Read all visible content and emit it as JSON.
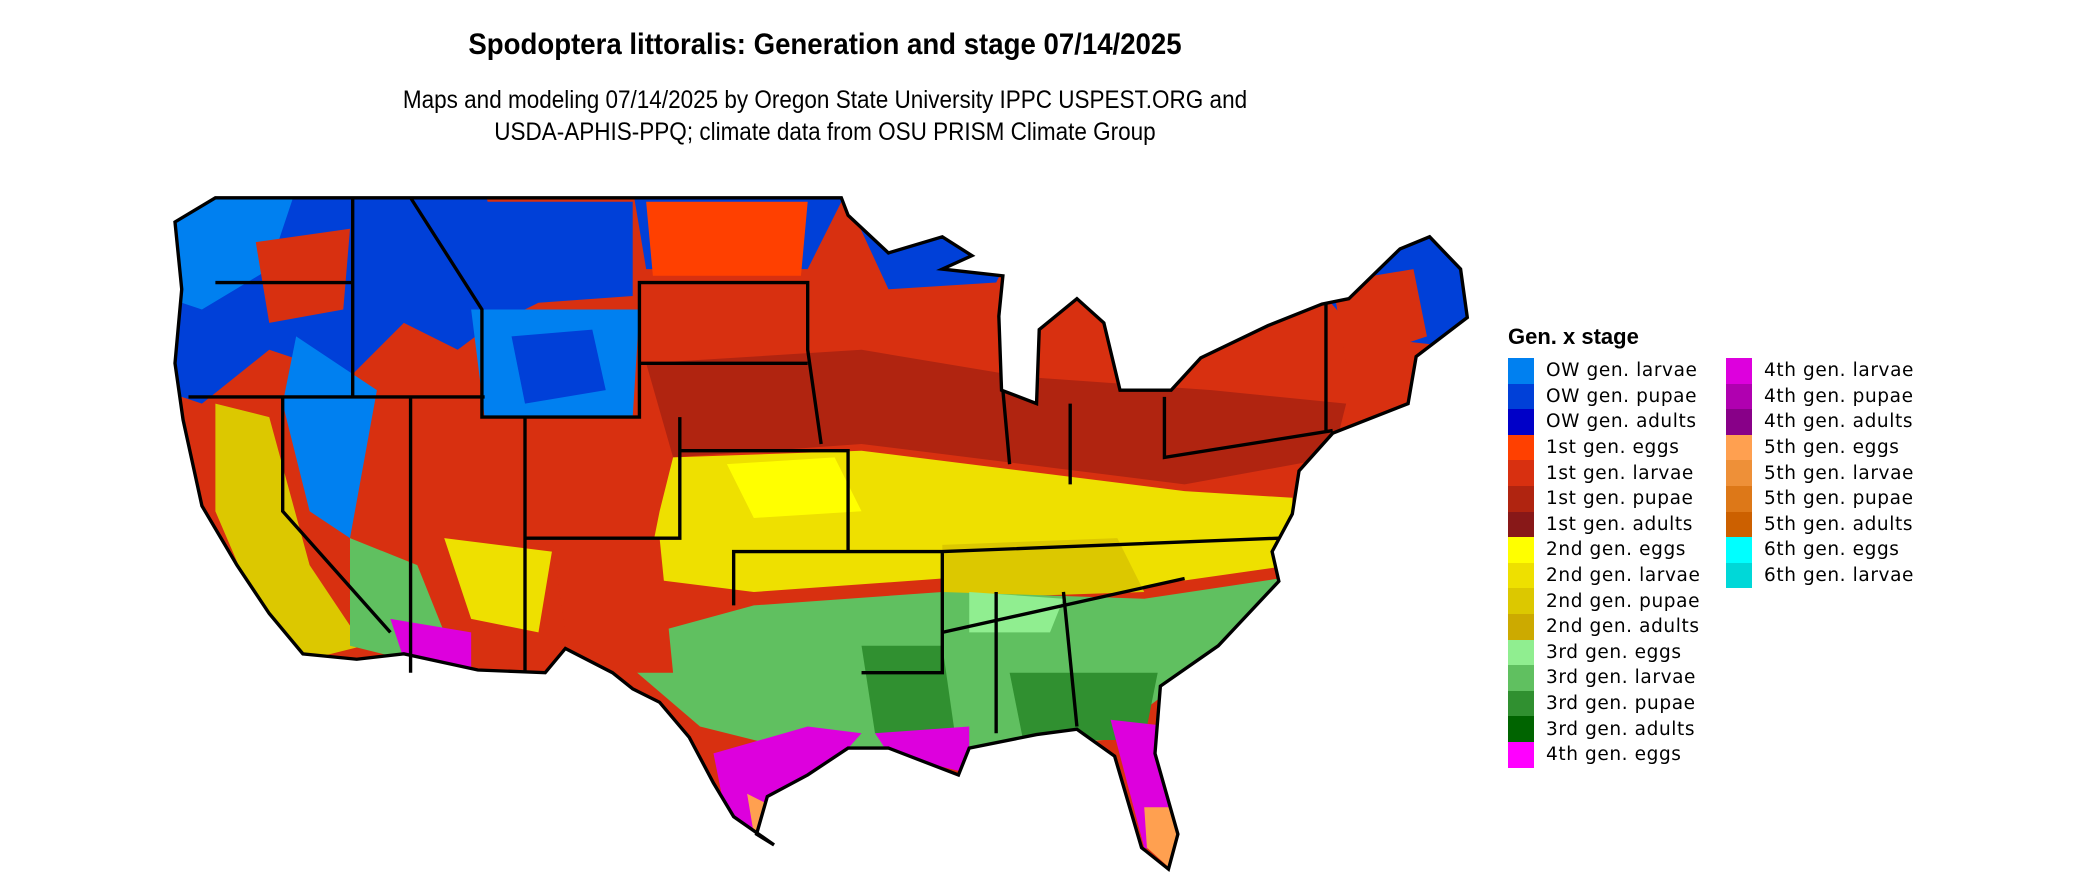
{
  "title": "Spodoptera littoralis: Generation and stage 07/14/2025",
  "subtitle_lines": [
    "Maps and modeling 07/14/2025 by Oregon State University IPPC USPEST.ORG and",
    "USDA-APHIS-PPQ; climate data from OSU PRISM Climate Group"
  ],
  "legend": {
    "title": "Gen. x stage",
    "items": [
      {
        "label": "OW gen. larvae",
        "color": "#0080f0"
      },
      {
        "label": "OW gen. pupae",
        "color": "#0040d8"
      },
      {
        "label": "OW gen. adults",
        "color": "#0000c8"
      },
      {
        "label": "1st gen. eggs",
        "color": "#ff4000"
      },
      {
        "label": "1st gen. larvae",
        "color": "#d83010"
      },
      {
        "label": "1st gen. pupae",
        "color": "#b02410"
      },
      {
        "label": "1st gen. adults",
        "color": "#881818"
      },
      {
        "label": "2nd gen. eggs",
        "color": "#ffff00"
      },
      {
        "label": "2nd gen. larvae",
        "color": "#eee000"
      },
      {
        "label": "2nd gen. pupae",
        "color": "#dcc800"
      },
      {
        "label": "2nd gen. adults",
        "color": "#ccaa00"
      },
      {
        "label": "3rd gen. eggs",
        "color": "#90ee90"
      },
      {
        "label": "3rd gen. larvae",
        "color": "#60c060"
      },
      {
        "label": "3rd gen. pupae",
        "color": "#309030"
      },
      {
        "label": "3rd gen. adults",
        "color": "#006400"
      },
      {
        "label": "4th gen. eggs",
        "color": "#ff00ff"
      },
      {
        "label": "4th gen. larvae",
        "color": "#dd00dd"
      },
      {
        "label": "4th gen. pupae",
        "color": "#b000b0"
      },
      {
        "label": "4th gen. adults",
        "color": "#880088"
      },
      {
        "label": "5th gen. eggs",
        "color": "#ffa050"
      },
      {
        "label": "5th gen. larvae",
        "color": "#ee9038"
      },
      {
        "label": "5th gen. pupae",
        "color": "#dd7818"
      },
      {
        "label": "5th gen. adults",
        "color": "#cc6000"
      },
      {
        "label": "6th gen. eggs",
        "color": "#00ffff"
      },
      {
        "label": "6th gen. larvae",
        "color": "#00d8d8"
      }
    ]
  }
}
